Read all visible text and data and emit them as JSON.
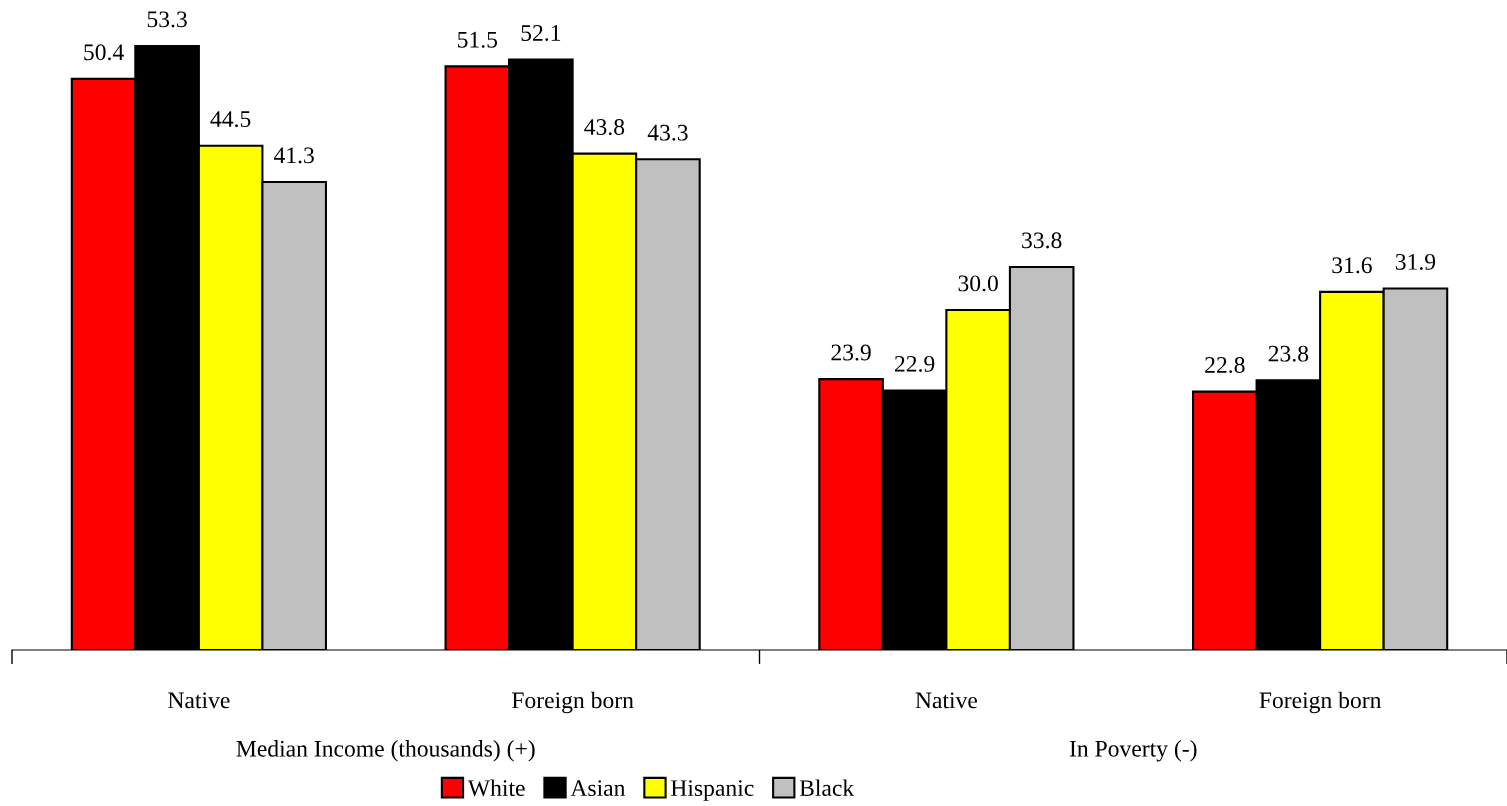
{
  "chart_data": {
    "type": "bar",
    "categories": [
      "Native",
      "Foreign born",
      "Native",
      "Foreign born"
    ],
    "series": [
      {
        "name": "White",
        "color": "#ff0000",
        "values": [
          50.4,
          51.5,
          23.9,
          22.8
        ],
        "value_labels": [
          "50.4",
          "51.5",
          "23.9",
          "22.8"
        ]
      },
      {
        "name": "Asian",
        "color": "#000000",
        "values": [
          53.3,
          52.1,
          22.9,
          23.8
        ],
        "value_labels": [
          "53.3",
          "52.1",
          "22.9",
          "23.8"
        ]
      },
      {
        "name": "Hispanic",
        "color": "#ffff00",
        "values": [
          44.5,
          43.8,
          30.0,
          31.6
        ],
        "value_labels": [
          "44.5",
          "43.8",
          "30.0",
          "31.6"
        ]
      },
      {
        "name": "Black",
        "color": "#c0c0c0",
        "values": [
          41.3,
          43.3,
          33.8,
          31.9
        ],
        "value_labels": [
          "41.3",
          "43.3",
          "33.8",
          "31.9"
        ]
      }
    ],
    "annotations": [
      "Median Income (thousands) (+)",
      "In Poverty (-)"
    ],
    "tick_labels": "x",
    "grid": false,
    "legend": "bottom"
  }
}
